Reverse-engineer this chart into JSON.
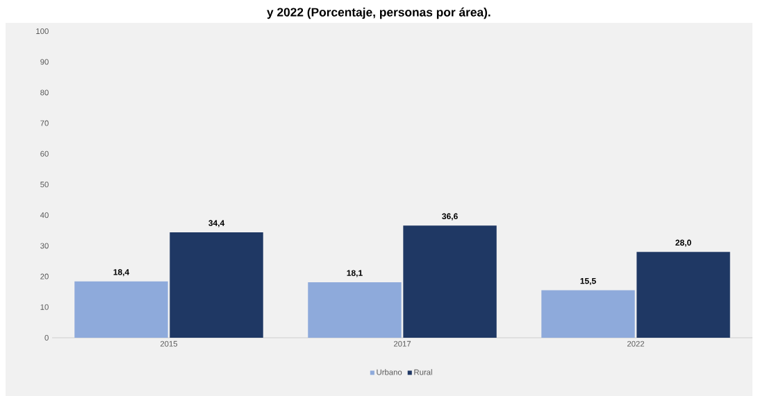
{
  "chart_data": {
    "type": "bar",
    "title": "y 2022 (Porcentaje, personas por área).",
    "categories": [
      "2015",
      "2017",
      "2022"
    ],
    "series": [
      {
        "name": "Urbano",
        "color": "#8eaadb",
        "values": [
          18.4,
          18.1,
          15.5
        ],
        "value_labels": [
          "18,4",
          "18,1",
          "15,5"
        ]
      },
      {
        "name": "Rural",
        "color": "#1f3864",
        "values": [
          34.4,
          36.6,
          28.0
        ],
        "value_labels": [
          "34,4",
          "36,6",
          "28,0"
        ]
      }
    ],
    "ylim": [
      0,
      100
    ],
    "yticks": [
      0,
      10,
      20,
      30,
      40,
      50,
      60,
      70,
      80,
      90,
      100
    ],
    "grid": false,
    "legend": "bottom"
  }
}
